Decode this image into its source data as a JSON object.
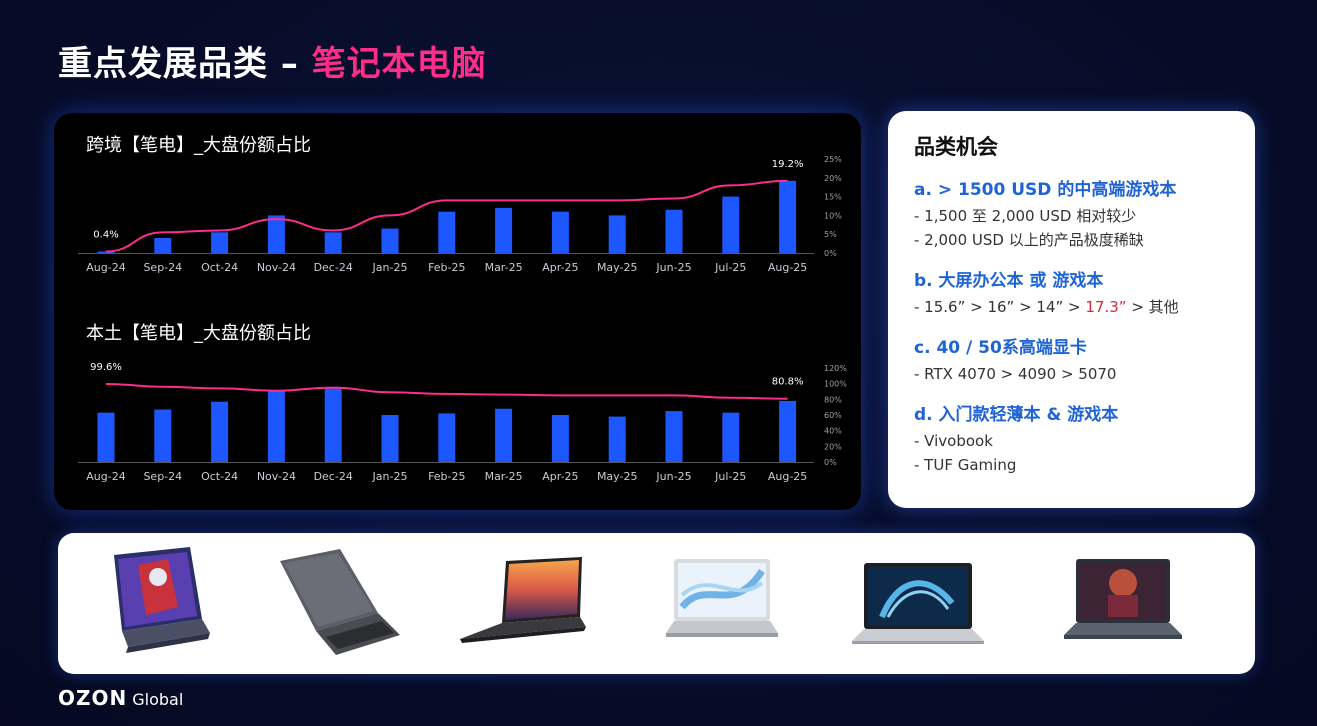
{
  "title": {
    "main": "重点发展品类 – ",
    "accent": "笔记本电脑"
  },
  "charts": {
    "cross_border": {
      "title": "跨境【笔电】_大盘份额占比"
    },
    "local": {
      "title": "本土【笔电】_大盘份额占比"
    }
  },
  "chart_data": [
    {
      "type": "bar",
      "title": "跨境【笔电】_大盘份额占比",
      "categories": [
        "Aug-24",
        "Sep-24",
        "Oct-24",
        "Nov-24",
        "Dec-24",
        "Jan-25",
        "Feb-25",
        "Mar-25",
        "Apr-25",
        "May-25",
        "Jun-25",
        "Jul-25",
        "Aug-25"
      ],
      "values": [
        0.4,
        4,
        5.5,
        10,
        5.5,
        6.5,
        11,
        12,
        11,
        10,
        11.5,
        15,
        19.2
      ],
      "line_values": [
        0.4,
        5.5,
        6,
        9,
        6,
        10,
        14,
        14,
        14,
        14,
        14.5,
        18,
        19.2
      ],
      "data_labels": [
        {
          "index": 0,
          "text": "0.4%"
        },
        {
          "index": 12,
          "text": "19.2%"
        }
      ],
      "yticks": [
        "0%",
        "5%",
        "10%",
        "15%",
        "20%",
        "25%"
      ],
      "ylim": [
        0,
        25
      ],
      "colors": {
        "bar": "#1d57ff",
        "line": "#ff2d8a"
      }
    },
    {
      "type": "bar",
      "title": "本土【笔电】_大盘份额占比",
      "categories": [
        "Aug-24",
        "Sep-24",
        "Oct-24",
        "Nov-24",
        "Dec-24",
        "Jan-25",
        "Feb-25",
        "Mar-25",
        "Apr-25",
        "May-25",
        "Jun-25",
        "Jul-25",
        "Aug-25"
      ],
      "values": [
        63,
        67,
        77,
        90,
        95,
        60,
        62,
        68,
        60,
        58,
        65,
        63,
        78
      ],
      "line_values": [
        99.6,
        96,
        94,
        91,
        95,
        89,
        87,
        86,
        85,
        85,
        85,
        82,
        80.8
      ],
      "data_labels": [
        {
          "index": 0,
          "text": "99.6%"
        },
        {
          "index": 12,
          "text": "80.8%"
        }
      ],
      "yticks": [
        "0%",
        "20%",
        "40%",
        "60%",
        "80%",
        "100%",
        "120%"
      ],
      "ylim": [
        0,
        120
      ],
      "colors": {
        "bar": "#1d57ff",
        "line": "#ff2d8a"
      }
    }
  ],
  "opportunities": {
    "title": "品类机会",
    "a": {
      "head": "a. > 1500 USD 的中高端游戏本",
      "lines": [
        "- 1,500 至 2,000 USD 相对较少",
        "- 2,000 USD 以上的产品极度稀缺"
      ]
    },
    "b": {
      "head": "b. 大屏办公本 或 游戏本",
      "line_pre": "- 15.6” > 16” > 14” > ",
      "line_hl": "17.3”",
      "line_post": " > 其他"
    },
    "c": {
      "head": "c. 40 / 50系高端显卡",
      "lines": [
        "- RTX 4070 > 4090 > 5070"
      ]
    },
    "d": {
      "head": "d. 入门款轻薄本 & 游戏本",
      "lines": [
        "-  Vivobook",
        "-  TUF Gaming"
      ]
    }
  },
  "brand": {
    "logo": "OZON",
    "suffix": "Global"
  }
}
